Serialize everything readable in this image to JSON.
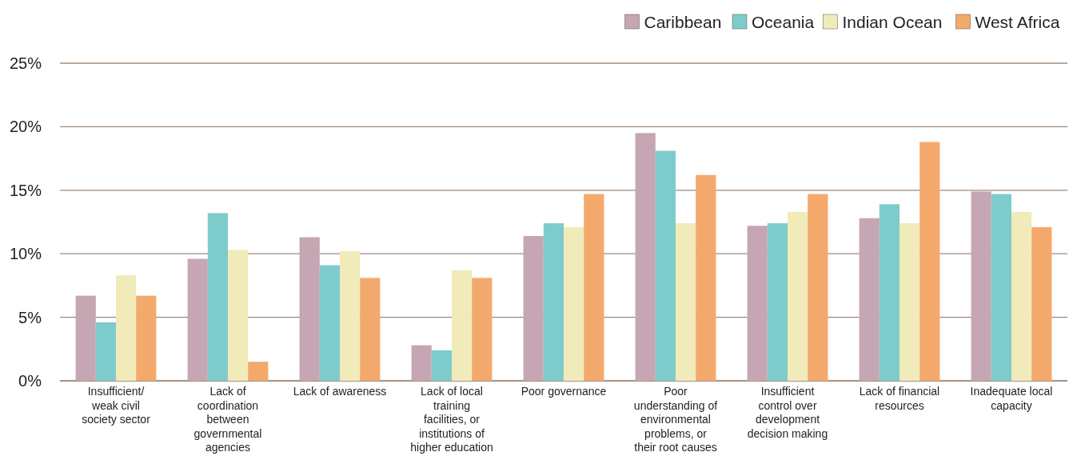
{
  "chart_data": {
    "type": "bar",
    "categories": [
      "Insufficient/ weak civil society sector",
      "Lack of coordination between governmental agencies",
      "Lack of awareness",
      "Lack of local training facilities, or institutions of higher education",
      "Poor governance",
      "Poor understanding of environmental problems, or their root causes",
      "Insufficient control over development decision making",
      "Lack of financial resources",
      "Inadequate local capacity"
    ],
    "series": [
      {
        "name": "Caribbean",
        "color": "#c5a6b2",
        "values": [
          6.7,
          9.6,
          11.3,
          2.8,
          11.4,
          19.5,
          12.2,
          12.8,
          14.9
        ]
      },
      {
        "name": "Oceania",
        "color": "#7ecbcc",
        "values": [
          4.6,
          13.2,
          9.1,
          2.4,
          12.4,
          18.1,
          12.4,
          13.9,
          14.7
        ]
      },
      {
        "name": "Indian Ocean",
        "color": "#f0ebb9",
        "values": [
          8.3,
          10.3,
          10.2,
          8.7,
          12.1,
          12.4,
          13.3,
          12.4,
          13.3
        ]
      },
      {
        "name": "West Africa",
        "color": "#f4a96c",
        "values": [
          6.7,
          1.5,
          8.1,
          8.1,
          14.7,
          16.2,
          14.7,
          18.8,
          12.1
        ]
      }
    ],
    "ylim": [
      0,
      25
    ],
    "yticks": [
      {
        "value": 0,
        "label": "0%"
      },
      {
        "value": 5,
        "label": "5%"
      },
      {
        "value": 10,
        "label": "10%"
      },
      {
        "value": 15,
        "label": "15%"
      },
      {
        "value": 20,
        "label": "20%"
      },
      {
        "value": 25,
        "label": "25%"
      }
    ],
    "grid": "y",
    "legend": "top right"
  }
}
